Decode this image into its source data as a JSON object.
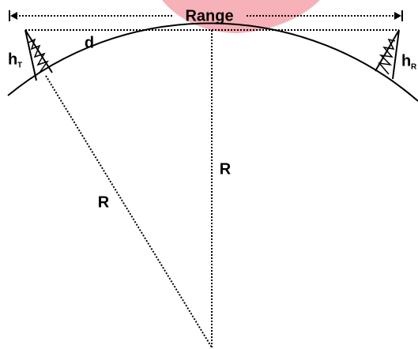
{
  "labels": {
    "range": "Range",
    "d": "d",
    "h_t": "h",
    "h_t_sub": "T",
    "h_r": "h",
    "h_r_sub": "R",
    "r_vertical": "R",
    "r_diagonal": "R"
  }
}
